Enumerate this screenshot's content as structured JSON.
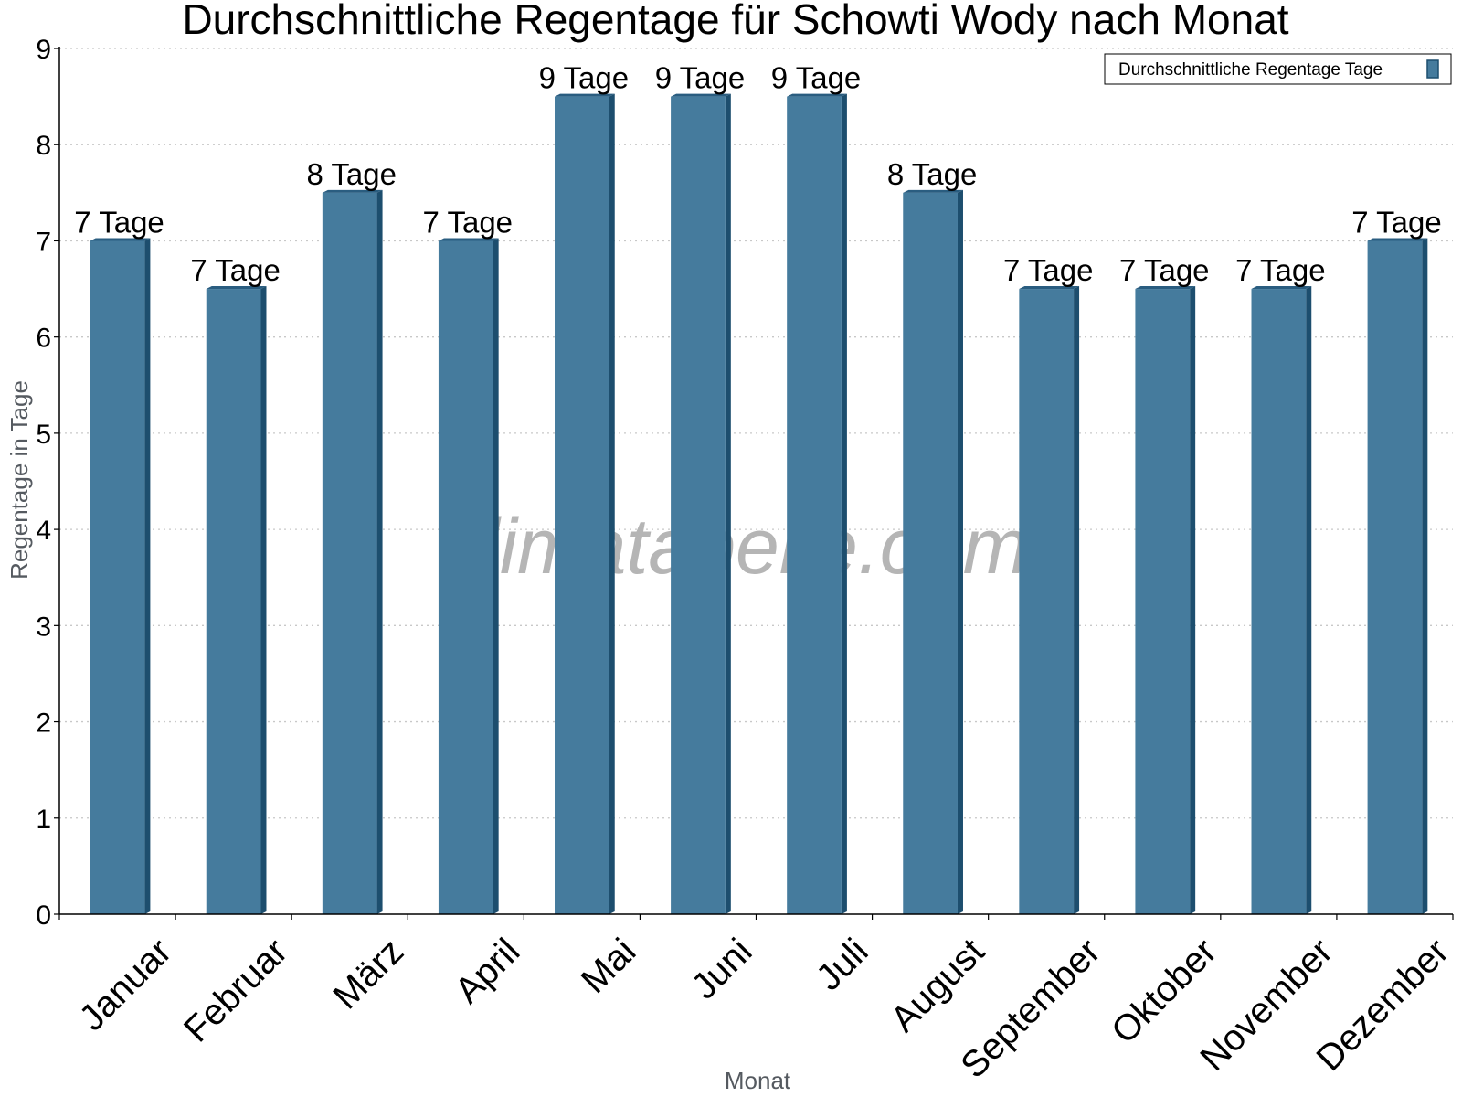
{
  "chart_data": {
    "type": "bar",
    "title": "Durchschnittliche Regentage für Schowti Wody nach Monat",
    "xlabel": "Monat",
    "ylabel": "Regentage in Tage",
    "categories": [
      "Januar",
      "Februar",
      "März",
      "April",
      "Mai",
      "Juni",
      "Juli",
      "August",
      "September",
      "Oktober",
      "November",
      "Dezember"
    ],
    "series": [
      {
        "name": "Durchschnittliche Regentage Tage",
        "values": [
          7,
          6.5,
          7.5,
          7,
          8.5,
          8.5,
          8.5,
          7.5,
          6.5,
          6.5,
          6.5,
          7
        ],
        "labels": [
          "7 Tage",
          "7 Tage",
          "8 Tage",
          "7 Tage",
          "9 Tage",
          "9 Tage",
          "9 Tage",
          "8 Tage",
          "7 Tage",
          "7 Tage",
          "7 Tage",
          "7 Tage"
        ]
      }
    ],
    "ylim": [
      0,
      9
    ],
    "yticks": [
      0,
      1,
      2,
      3,
      4,
      5,
      6,
      7,
      8,
      9
    ],
    "grid": true,
    "legend_position": "top-right",
    "colors": {
      "bar": "#457b9d",
      "bar_side": "#1d4e6e",
      "bar_top": "#2a5d80",
      "grid": "#c8c8c8",
      "axis": "#000000"
    },
    "watermark": "klimatabelle.com"
  }
}
